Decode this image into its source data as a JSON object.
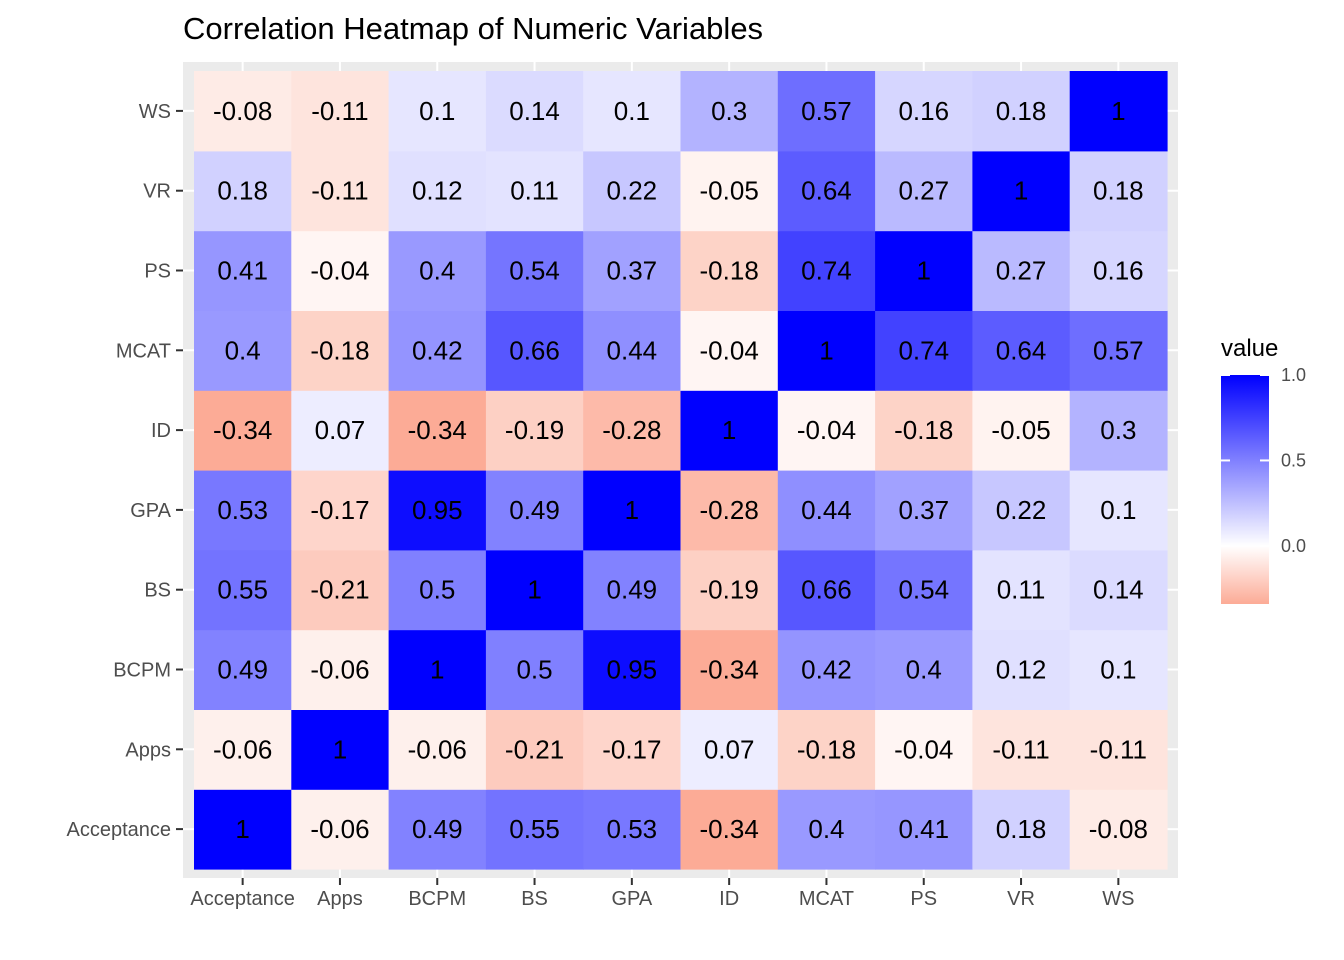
{
  "chart_data": {
    "type": "heatmap",
    "title": "Correlation Heatmap of Numeric Variables",
    "xlabel": "",
    "ylabel": "",
    "x_categories": [
      "Acceptance",
      "Apps",
      "BCPM",
      "BS",
      "GPA",
      "ID",
      "MCAT",
      "PS",
      "VR",
      "WS"
    ],
    "y_categories": [
      "Acceptance",
      "Apps",
      "BCPM",
      "BS",
      "GPA",
      "ID",
      "MCAT",
      "PS",
      "VR",
      "WS"
    ],
    "values": [
      [
        1,
        -0.06,
        0.49,
        0.55,
        0.53,
        -0.34,
        0.4,
        0.41,
        0.18,
        -0.08
      ],
      [
        -0.06,
        1,
        -0.06,
        -0.21,
        -0.17,
        0.07,
        -0.18,
        -0.04,
        -0.11,
        -0.11
      ],
      [
        0.49,
        -0.06,
        1,
        0.5,
        0.95,
        -0.34,
        0.42,
        0.4,
        0.12,
        0.1
      ],
      [
        0.55,
        -0.21,
        0.5,
        1,
        0.49,
        -0.19,
        0.66,
        0.54,
        0.11,
        0.14
      ],
      [
        0.53,
        -0.17,
        0.95,
        0.49,
        1,
        -0.28,
        0.44,
        0.37,
        0.22,
        0.1
      ],
      [
        -0.34,
        0.07,
        -0.34,
        -0.19,
        -0.28,
        1,
        -0.04,
        -0.18,
        -0.05,
        0.3
      ],
      [
        0.4,
        -0.18,
        0.42,
        0.66,
        0.44,
        -0.04,
        1,
        0.74,
        0.64,
        0.57
      ],
      [
        0.41,
        -0.04,
        0.4,
        0.54,
        0.37,
        -0.18,
        0.74,
        1,
        0.27,
        0.16
      ],
      [
        0.18,
        -0.11,
        0.12,
        0.11,
        0.22,
        -0.05,
        0.64,
        0.27,
        1,
        0.18
      ],
      [
        -0.08,
        -0.11,
        0.1,
        0.14,
        0.1,
        0.3,
        0.57,
        0.16,
        0.18,
        1
      ]
    ],
    "value_labels": [
      [
        "1",
        "-0.06",
        "0.49",
        "0.55",
        "0.53",
        "-0.34",
        "0.4",
        "0.41",
        "0.18",
        "-0.08"
      ],
      [
        "-0.06",
        "1",
        "-0.06",
        "-0.21",
        "-0.17",
        "0.07",
        "-0.18",
        "-0.04",
        "-0.11",
        "-0.11"
      ],
      [
        "0.49",
        "-0.06",
        "1",
        "0.5",
        "0.95",
        "-0.34",
        "0.42",
        "0.4",
        "0.12",
        "0.1"
      ],
      [
        "0.55",
        "-0.21",
        "0.5",
        "1",
        "0.49",
        "-0.19",
        "0.66",
        "0.54",
        "0.11",
        "0.14"
      ],
      [
        "0.53",
        "-0.17",
        "0.95",
        "0.49",
        "1",
        "-0.28",
        "0.44",
        "0.37",
        "0.22",
        "0.1"
      ],
      [
        "-0.34",
        "0.07",
        "-0.34",
        "-0.19",
        "-0.28",
        "1",
        "-0.04",
        "-0.18",
        "-0.05",
        "0.3"
      ],
      [
        "0.4",
        "-0.18",
        "0.42",
        "0.66",
        "0.44",
        "-0.04",
        "1",
        "0.74",
        "0.64",
        "0.57"
      ],
      [
        "0.41",
        "-0.04",
        "0.4",
        "0.54",
        "0.37",
        "-0.18",
        "0.74",
        "1",
        "0.27",
        "0.16"
      ],
      [
        "0.18",
        "-0.11",
        "0.12",
        "0.11",
        "0.22",
        "-0.05",
        "0.64",
        "0.27",
        "1",
        "0.18"
      ],
      [
        "-0.08",
        "-0.11",
        "0.1",
        "0.14",
        "0.1",
        "0.3",
        "0.57",
        "0.16",
        "0.18",
        "1"
      ]
    ],
    "legend": {
      "title": "value",
      "placement": "right",
      "ticks": [
        1.0,
        0.5,
        0.0
      ],
      "tick_labels": [
        "1.0",
        "0.5",
        "0.0"
      ],
      "range": [
        -0.34,
        1.0
      ]
    },
    "colors": {
      "low": "#fcab96",
      "mid": "#ffffff",
      "high": "#0000ff",
      "panel_background": "#ebebeb",
      "gridline": "#ffffff"
    },
    "grid": true
  }
}
